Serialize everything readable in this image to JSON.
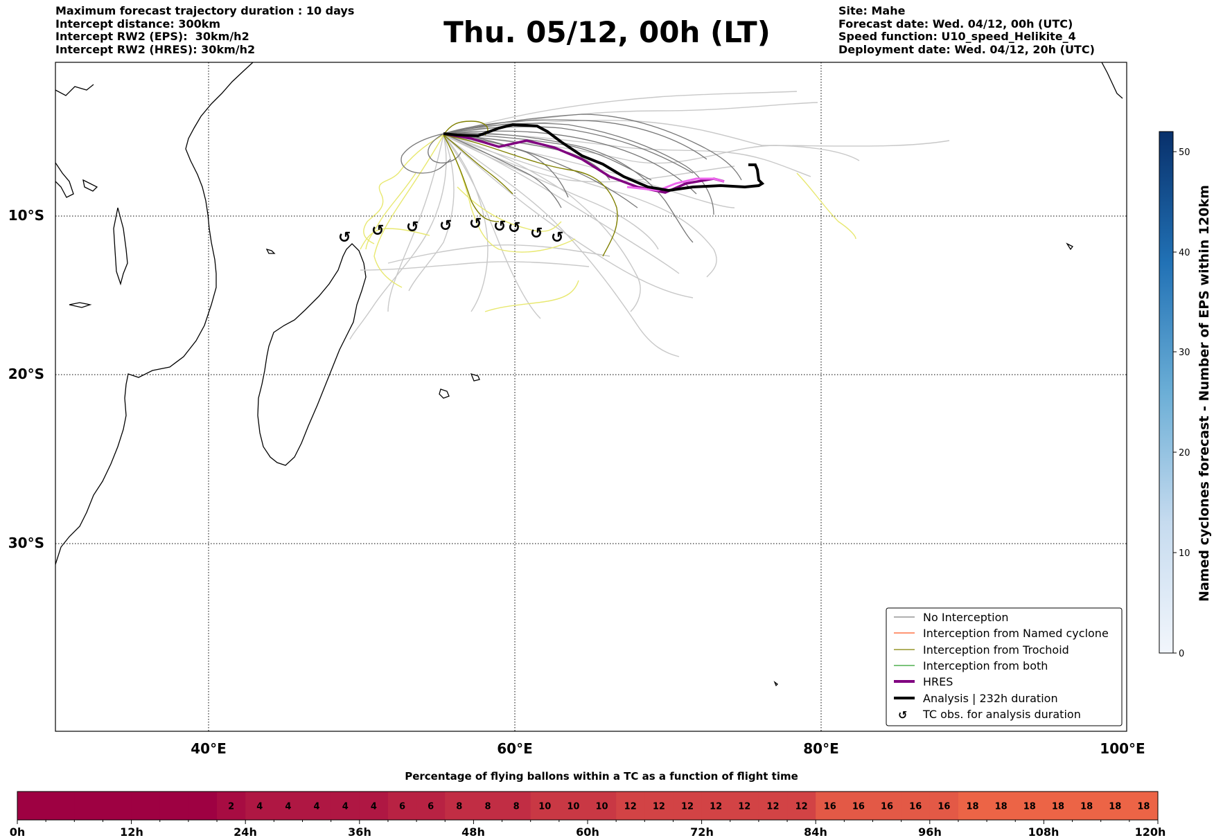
{
  "header": {
    "left_lines": [
      "Maximum forecast trajectory duration : 10 days",
      "Intercept distance: 300km",
      "Intercept RW2 (EPS):  30km/h2",
      "Intercept RW2 (HRES): 30km/h2"
    ],
    "title": "Thu. 05/12, 00h (LT)",
    "right_lines": [
      "Site: Mahe",
      "Forecast date: Wed. 04/12, 00h (UTC)",
      "Speed function: U10_speed_Helikite_4",
      "Deployment date: Wed. 04/12, 20h (UTC)"
    ]
  },
  "map": {
    "lon_labels": [
      "40°E",
      "60°E",
      "80°E",
      "100°E"
    ],
    "lat_labels": [
      "10°S",
      "20°S",
      "30°S"
    ],
    "tc_symbol": "↺",
    "legend": [
      {
        "label": "No Interception",
        "color": "#808080",
        "style": "thin"
      },
      {
        "label": "Interception from Named cyclone",
        "color": "#ff5722",
        "style": "thin"
      },
      {
        "label": "Interception from Trochoid",
        "color": "#808000",
        "style": "thin"
      },
      {
        "label": "Interception from both",
        "color": "#2ca02c",
        "style": "thin"
      },
      {
        "label": "HRES",
        "color": "#800080",
        "style": "thick"
      },
      {
        "label": "Analysis | 232h duration",
        "color": "#000000",
        "style": "thick"
      },
      {
        "label": "TC obs. for analysis duration",
        "color": "#000000",
        "style": "symbol"
      }
    ]
  },
  "colorbar_right": {
    "label": "Named cyclones forecast - Number of EPS within 120km",
    "ticks": [
      "0",
      "10",
      "20",
      "30",
      "40",
      "50"
    ],
    "color_low": "#f2f6fc",
    "color_high": "#08306b"
  },
  "bottom_bar": {
    "title": "Percentage of flying ballons within a TC as a function of flight time",
    "cells": [
      "",
      "",
      "",
      "",
      "",
      "",
      "",
      "2",
      "4",
      "4",
      "4",
      "4",
      "4",
      "6",
      "6",
      "8",
      "8",
      "8",
      "10",
      "10",
      "10",
      "12",
      "12",
      "12",
      "12",
      "12",
      "12",
      "12",
      "16",
      "16",
      "16",
      "16",
      "16",
      "18",
      "18",
      "18",
      "18",
      "18",
      "18",
      "18"
    ],
    "time_labels": [
      "0h",
      "12h",
      "24h",
      "36h",
      "48h",
      "60h",
      "72h",
      "84h",
      "96h",
      "108h",
      "120h"
    ]
  }
}
